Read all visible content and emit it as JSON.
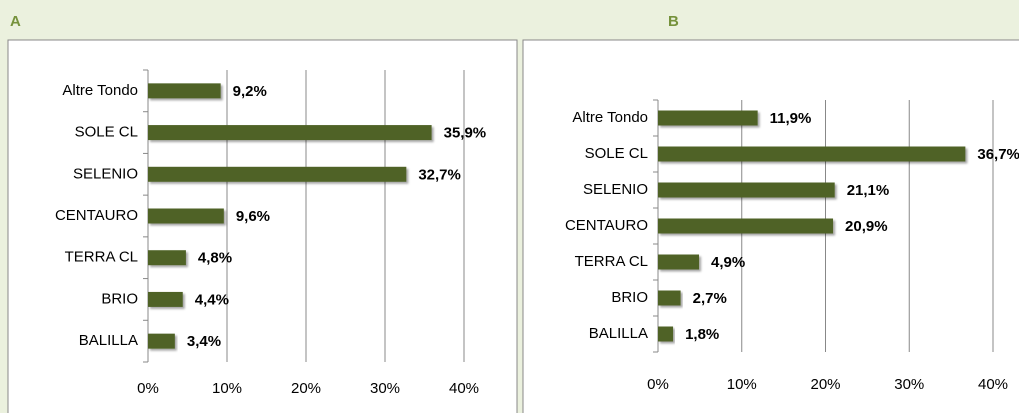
{
  "chart_data": [
    {
      "type": "bar",
      "orientation": "horizontal",
      "title": "A",
      "categories": [
        "Altre Tondo",
        "SOLE CL",
        "SELENIO",
        "CENTAURO",
        "TERRA CL",
        "BRIO",
        "BALILLA"
      ],
      "values": [
        9.2,
        35.9,
        32.7,
        9.6,
        4.8,
        4.4,
        3.4
      ],
      "value_labels": [
        "9,2%",
        "35,9%",
        "32,7%",
        "9,6%",
        "4,8%",
        "4,4%",
        "3,4%"
      ],
      "color": "#4f6228",
      "xlim": [
        0,
        40
      ],
      "xticks": [
        {
          "value": 0,
          "label": "0%"
        },
        {
          "value": 10,
          "label": "10%"
        },
        {
          "value": 20,
          "label": "20%"
        },
        {
          "value": 30,
          "label": "30%"
        },
        {
          "value": 40,
          "label": "40%"
        }
      ],
      "grid": true
    },
    {
      "type": "bar",
      "orientation": "horizontal",
      "title": "B",
      "categories": [
        "Altre Tondo",
        "SOLE CL",
        "SELENIO",
        "CENTAURO",
        "TERRA CL",
        "BRIO",
        "BALILLA"
      ],
      "values": [
        11.9,
        36.7,
        21.1,
        20.9,
        4.9,
        2.7,
        1.8
      ],
      "value_labels": [
        "11,9%",
        "36,7%",
        "21,1%",
        "20,9%",
        "4,9%",
        "2,7%",
        "1,8%"
      ],
      "color": "#4f6228",
      "xlim": [
        0,
        40
      ],
      "xticks": [
        {
          "value": 0,
          "label": "0%"
        },
        {
          "value": 10,
          "label": "10%"
        },
        {
          "value": 20,
          "label": "20%"
        },
        {
          "value": 30,
          "label": "30%"
        },
        {
          "value": 40,
          "label": "40%"
        }
      ],
      "grid": true
    }
  ]
}
